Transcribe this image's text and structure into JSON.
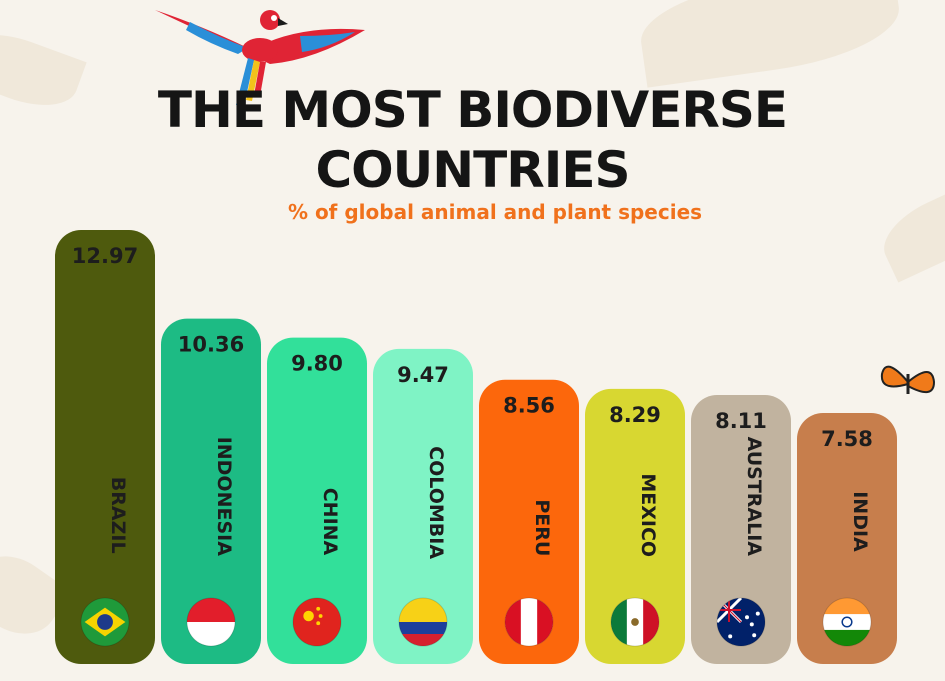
{
  "chart_data": {
    "type": "bar",
    "title": "THE MOST BIODIVERSE COUNTRIES",
    "subtitle": "% of global animal and plant species",
    "categories": [
      "BRAZIL",
      "INDONESIA",
      "CHINA",
      "COLOMBIA",
      "PERU",
      "MEXICO",
      "AUSTRALIA",
      "INDIA"
    ],
    "values": [
      12.97,
      10.36,
      9.8,
      9.47,
      8.56,
      8.29,
      8.11,
      7.58
    ],
    "value_labels": [
      "12.97",
      "10.36",
      "9.80",
      "9.47",
      "8.56",
      "8.29",
      "8.11",
      "7.58"
    ],
    "colors": [
      "#4e5a0d",
      "#1dbb84",
      "#32e09a",
      "#7ff3c5",
      "#fc670c",
      "#d8d731",
      "#c1b39f",
      "#c77e4c"
    ],
    "flags": [
      "brazil-flag",
      "indonesia-flag",
      "china-flag",
      "colombia-flag",
      "peru-flag",
      "mexico-flag",
      "australia-flag",
      "india-flag"
    ]
  }
}
